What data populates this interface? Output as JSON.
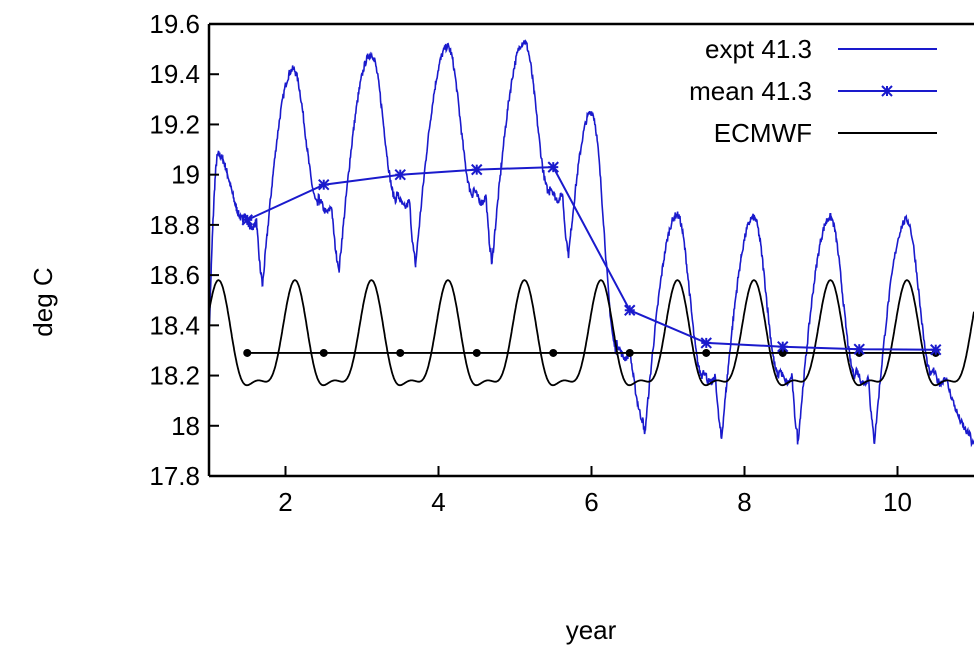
{
  "chart_data": {
    "type": "line",
    "title": "",
    "xlabel": "year",
    "ylabel": "deg C",
    "xlim": [
      1,
      11
    ],
    "ylim": [
      17.8,
      19.6
    ],
    "xticks": [
      "2",
      "4",
      "6",
      "8",
      "10"
    ],
    "yticks": [
      "17.8",
      "18",
      "18.2",
      "18.4",
      "18.6",
      "18.8",
      "19",
      "19.2",
      "19.4",
      "19.6"
    ],
    "grid": false,
    "legend_position": "top-right",
    "colors": {
      "expt": "#1a1acc",
      "mean": "#1a1acc",
      "ecmwf": "#000000"
    },
    "series": [
      {
        "name": "expt 41.3",
        "style": "line-noisy",
        "periods": [
          {
            "start": 1.0,
            "min": 18.35,
            "peak": 19.08,
            "peak_x": 1.12,
            "plateau": 18.82,
            "trough": 18.56
          },
          {
            "start": 1.7,
            "min": 18.56,
            "peak": 19.42,
            "peak_x": 2.1,
            "plateau": 18.88,
            "trough": 18.62
          },
          {
            "start": 2.7,
            "min": 18.62,
            "peak": 19.48,
            "peak_x": 3.12,
            "plateau": 18.9,
            "trough": 18.64
          },
          {
            "start": 3.7,
            "min": 18.64,
            "peak": 19.51,
            "peak_x": 4.12,
            "plateau": 18.92,
            "trough": 18.65
          },
          {
            "start": 4.7,
            "min": 18.65,
            "peak": 19.53,
            "peak_x": 5.12,
            "plateau": 18.93,
            "trough": 18.68
          },
          {
            "start": 5.7,
            "min": 18.68,
            "peak": 19.25,
            "peak_x": 6.0,
            "plateau": 18.3,
            "trough": 17.98
          },
          {
            "start": 6.7,
            "min": 17.98,
            "peak": 18.84,
            "peak_x": 7.12,
            "plateau": 18.2,
            "trough": 17.95
          },
          {
            "start": 7.7,
            "min": 17.95,
            "peak": 18.83,
            "peak_x": 8.12,
            "plateau": 18.2,
            "trough": 17.94
          },
          {
            "start": 8.7,
            "min": 17.94,
            "peak": 18.83,
            "peak_x": 9.12,
            "plateau": 18.2,
            "trough": 17.94
          },
          {
            "start": 9.7,
            "min": 17.94,
            "peak": 18.82,
            "peak_x": 10.12,
            "plateau": 18.2,
            "trough": 17.93
          }
        ]
      },
      {
        "name": "mean 41.3",
        "style": "line-points",
        "x": [
          1.5,
          2.5,
          3.5,
          4.5,
          5.5,
          6.5,
          7.5,
          8.5,
          9.5,
          10.5
        ],
        "y": [
          18.82,
          18.96,
          19.0,
          19.02,
          19.03,
          18.46,
          18.33,
          18.315,
          18.305,
          18.303
        ]
      },
      {
        "name": "ECMWF",
        "style": "line",
        "mean_x": [
          1.5,
          2.5,
          3.5,
          4.5,
          5.5,
          6.5,
          7.5,
          8.5,
          9.5,
          10.5
        ],
        "mean_y": 18.29,
        "cycle": {
          "peak": 18.55,
          "trough": 18.07,
          "secondary_peak": 18.28,
          "secondary_trough": 18.21
        }
      }
    ]
  }
}
